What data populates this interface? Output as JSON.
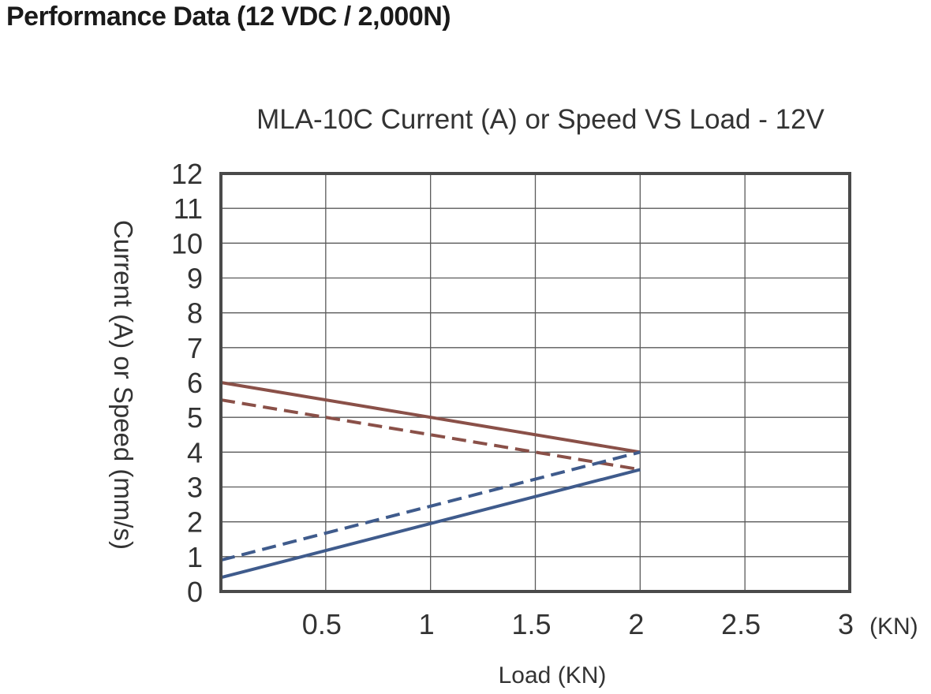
{
  "page": {
    "heading": "Performance Data (12 VDC / 2,000N)"
  },
  "chart_data": {
    "type": "line",
    "title": "MLA-10C Current (A) or Speed VS Load - 12V",
    "xlabel": "Load (KN)",
    "ylabel": "Current (A) or Speed (mm/s)",
    "x_unit_label": "(KN)",
    "xlim": [
      0,
      3
    ],
    "ylim": [
      0,
      12
    ],
    "x_ticks": [
      "0.5",
      "1",
      "1.5",
      "2",
      "2.5",
      "3"
    ],
    "x_tick_values": [
      0.5,
      1,
      1.5,
      2,
      2.5,
      3
    ],
    "y_ticks": [
      "0",
      "1",
      "2",
      "3",
      "4",
      "5",
      "6",
      "7",
      "8",
      "9",
      "10",
      "11",
      "12"
    ],
    "y_tick_values": [
      0,
      1,
      2,
      3,
      4,
      5,
      6,
      7,
      8,
      9,
      10,
      11,
      12
    ],
    "grid": true,
    "legend": "none",
    "series": [
      {
        "name": "brown-solid",
        "color": "#8a5048",
        "style": "solid",
        "x": [
          0,
          2
        ],
        "y": [
          6,
          4
        ]
      },
      {
        "name": "brown-dashed",
        "color": "#8a5048",
        "style": "dashed",
        "x": [
          0,
          2
        ],
        "y": [
          5.5,
          3.5
        ]
      },
      {
        "name": "blue-solid",
        "color": "#3f5b8c",
        "style": "solid",
        "x": [
          0,
          2
        ],
        "y": [
          0.4,
          3.5
        ]
      },
      {
        "name": "blue-dashed",
        "color": "#3f5b8c",
        "style": "dashed",
        "x": [
          0,
          2
        ],
        "y": [
          0.9,
          4
        ]
      }
    ]
  }
}
